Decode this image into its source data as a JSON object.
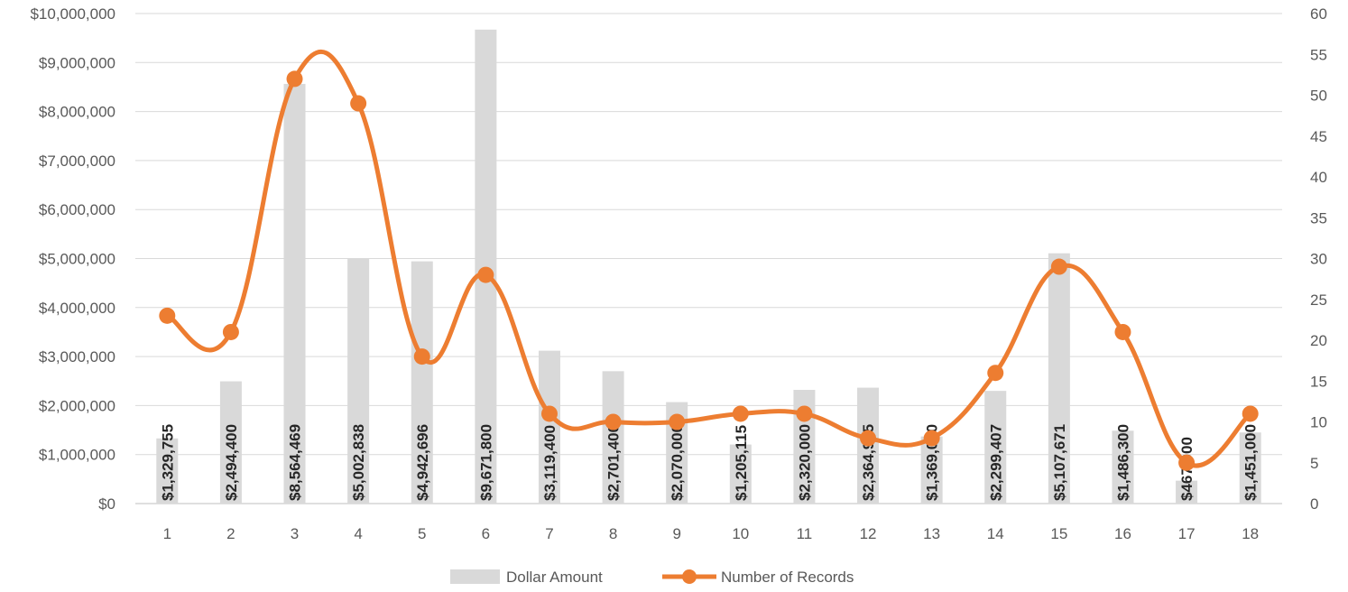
{
  "chart_data": {
    "type": "bar",
    "title": "",
    "xlabel": "",
    "ylabel": "",
    "categories": [
      "1",
      "2",
      "3",
      "4",
      "5",
      "6",
      "7",
      "8",
      "9",
      "10",
      "11",
      "12",
      "13",
      "14",
      "15",
      "16",
      "17",
      "18"
    ],
    "series": [
      {
        "name": "Dollar Amount",
        "type": "bar",
        "axis": "left",
        "color": "#d9d9d9",
        "values": [
          1329755,
          2494400,
          8564469,
          5002838,
          4942696,
          9671800,
          3119400,
          2701400,
          2070000,
          1205115,
          2320000,
          2364975,
          1369000,
          2299407,
          5107671,
          1486300,
          467000,
          1451000
        ],
        "labels": [
          "$1,329,755",
          "$2,494,400",
          "$8,564,469",
          "$5,002,838",
          "$4,942,696",
          "$9,671,800",
          "$3,119,400",
          "$2,701,400",
          "$2,070,000",
          "$1,205,115",
          "$2,320,000",
          "$2,364,975",
          "$1,369,000",
          "$2,299,407",
          "$5,107,671",
          "$1,486,300",
          "$467,000",
          "$1,451,000"
        ]
      },
      {
        "name": "Number of Records",
        "type": "line",
        "axis": "right",
        "color": "#ed7d31",
        "values": [
          23,
          21,
          52,
          49,
          18,
          28,
          11,
          10,
          10,
          11,
          11,
          8,
          8,
          16,
          29,
          21,
          5,
          11
        ]
      }
    ],
    "ylim_left": [
      0,
      10000000
    ],
    "ylim_right": [
      0,
      60
    ],
    "yticks_left": [
      "$0",
      "$1,000,000",
      "$2,000,000",
      "$3,000,000",
      "$4,000,000",
      "$5,000,000",
      "$6,000,000",
      "$7,000,000",
      "$8,000,000",
      "$9,000,000",
      "$10,000,000"
    ],
    "yticks_right": [
      "0",
      "5",
      "10",
      "15",
      "20",
      "25",
      "30",
      "35",
      "40",
      "45",
      "50",
      "55",
      "60"
    ],
    "grid": true,
    "legend_position": "bottom"
  }
}
